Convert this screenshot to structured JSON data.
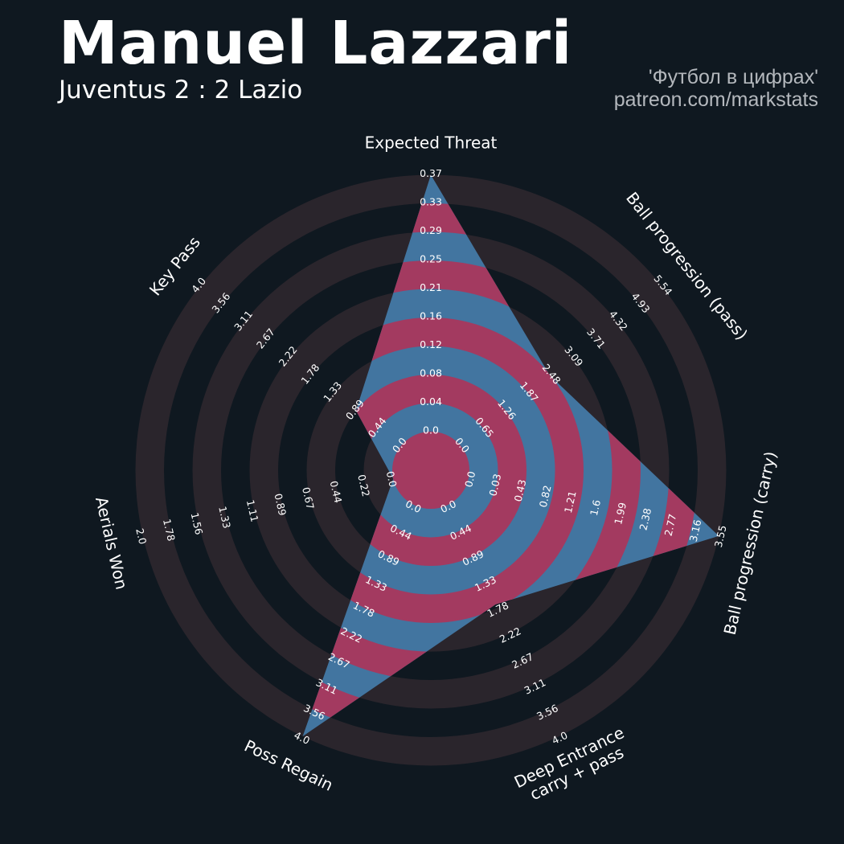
{
  "header": {
    "title": "Manuel Lazzari",
    "subtitle": "Juventus 2 : 2 Lazio",
    "credit_line1": "'Футбол в цифрах'",
    "credit_line2": "patreon.com/markstats"
  },
  "chart_data": {
    "type": "radar",
    "colors": {
      "background": "#0f1820",
      "ring": "#2a252c",
      "polygon_even": "#a33a60",
      "polygon_odd": "#4275a0",
      "text": "#ffffff",
      "credit": "#b4b8bd"
    },
    "params": [
      {
        "label": [
          "Expected Threat"
        ],
        "ticks": [
          "0.0",
          "0.04",
          "0.08",
          "0.12",
          "0.16",
          "0.21",
          "0.25",
          "0.29",
          "0.33",
          "0.37"
        ],
        "min": 0,
        "max": 0.37,
        "value": 0.37
      },
      {
        "label": [
          "Ball progression (pass)"
        ],
        "ticks": [
          "0.0",
          "0.65",
          "1.26",
          "1.87",
          "2.48",
          "3.09",
          "3.71",
          "4.32",
          "4.93",
          "5.54"
        ],
        "min": 0,
        "max": 5.54,
        "value": 2.45
      },
      {
        "label": [
          "Ball progression (carry)"
        ],
        "ticks": [
          "0.0",
          "0.03",
          "0.43",
          "0.82",
          "1.21",
          "1.6",
          "1.99",
          "2.38",
          "2.77",
          "3.16",
          "3.55"
        ],
        "min": 0,
        "max": 3.55,
        "value": 3.55
      },
      {
        "label": [
          "Deep Entrance",
          "carry + pass"
        ],
        "ticks": [
          "0.0",
          "0.44",
          "0.89",
          "1.33",
          "1.78",
          "2.22",
          "2.67",
          "3.11",
          "3.56",
          "4.0"
        ],
        "min": 0,
        "max": 4.0,
        "value": 1.72
      },
      {
        "label": [
          "Poss Regain"
        ],
        "ticks": [
          "0.0",
          "0.44",
          "0.89",
          "1.33",
          "1.78",
          "2.22",
          "2.67",
          "3.11",
          "3.56",
          "4.0"
        ],
        "min": 0,
        "max": 4.0,
        "value": 4.0
      },
      {
        "label": [
          "Aerials Won"
        ],
        "ticks": [
          "0.0",
          "0.22",
          "0.44",
          "0.67",
          "0.89",
          "1.11",
          "1.33",
          "1.56",
          "1.78",
          "2.0"
        ],
        "min": 0,
        "max": 2.0,
        "value": 0.0
      },
      {
        "label": [
          "Key Pass"
        ],
        "ticks": [
          "0.0",
          "0.44",
          "0.89",
          "1.33",
          "1.78",
          "2.22",
          "2.67",
          "3.11",
          "3.56",
          "4.0"
        ],
        "min": 0,
        "max": 4.0,
        "value": 0.89
      }
    ]
  }
}
